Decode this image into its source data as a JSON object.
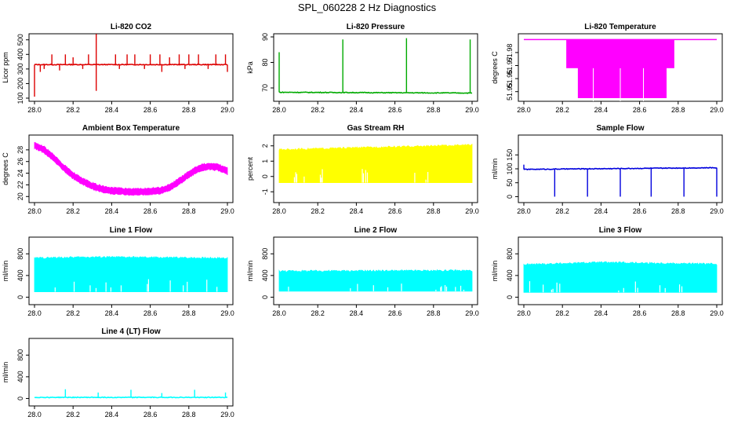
{
  "figure_title": "SPL_060228  2 Hz Diagnostics",
  "chart_data": [
    {
      "type": "line",
      "title": "Li-820 CO2",
      "ylabel": "Licor ppm",
      "xlim": [
        28.0,
        29.0
      ],
      "ylim": [
        100,
        520
      ],
      "xticks": [
        28.0,
        28.2,
        28.4,
        28.6,
        28.8,
        29.0
      ],
      "yticks": [
        100,
        200,
        300,
        400,
        500
      ],
      "color": "#dd0000",
      "baseline": 330,
      "spikes": [
        [
          28.0,
          110
        ],
        [
          28.03,
          280
        ],
        [
          28.05,
          300
        ],
        [
          28.09,
          400
        ],
        [
          28.13,
          290
        ],
        [
          28.16,
          400
        ],
        [
          28.2,
          380
        ],
        [
          28.25,
          300
        ],
        [
          28.28,
          400
        ],
        [
          28.32,
          540
        ],
        [
          28.32,
          150
        ],
        [
          28.42,
          400
        ],
        [
          28.44,
          300
        ],
        [
          28.48,
          400
        ],
        [
          28.52,
          400
        ],
        [
          28.57,
          300
        ],
        [
          28.6,
          400
        ],
        [
          28.65,
          400
        ],
        [
          28.66,
          280
        ],
        [
          28.7,
          380
        ],
        [
          28.75,
          400
        ],
        [
          28.78,
          300
        ],
        [
          28.8,
          400
        ],
        [
          28.85,
          400
        ],
        [
          28.9,
          300
        ],
        [
          28.94,
          400
        ],
        [
          28.99,
          400
        ],
        [
          29.0,
          280
        ]
      ]
    },
    {
      "type": "line",
      "title": "Li-820 Pressure",
      "ylabel": "kPa",
      "xlim": [
        28.0,
        29.0
      ],
      "ylim": [
        66,
        90
      ],
      "xticks": [
        28.0,
        28.2,
        28.4,
        28.6,
        28.8,
        29.0
      ],
      "yticks": [
        70,
        80,
        90
      ],
      "color": "#00aa00",
      "baseline_start": 68.3,
      "baseline_end": 68.0,
      "spikes": [
        [
          28.0,
          84
        ],
        [
          28.33,
          89
        ],
        [
          28.66,
          89.5
        ],
        [
          28.99,
          89
        ]
      ]
    },
    {
      "type": "area",
      "title": "Li-820 Temperature",
      "ylabel": "degrees C",
      "xlim": [
        28.0,
        29.0
      ],
      "ylim": [
        51.945,
        51.992
      ],
      "xticks": [
        28.0,
        28.2,
        28.4,
        28.6,
        28.8,
        29.0
      ],
      "yticks": [
        51.95,
        51.96,
        51.97,
        51.98
      ],
      "color": "#ff00ff",
      "upper": 51.99,
      "bands": [
        {
          "x": [
            28.22,
            28.78
          ],
          "ymin": 51.968
        },
        {
          "x": [
            28.28,
            28.74
          ],
          "ymin": 51.945
        }
      ]
    },
    {
      "type": "area",
      "title": "Ambient Box Temperature",
      "ylabel": "degrees C",
      "xlim": [
        28.0,
        29.0
      ],
      "ylim": [
        19.5,
        30.0
      ],
      "xticks": [
        28.0,
        28.2,
        28.4,
        28.6,
        28.8,
        29.0
      ],
      "yticks": [
        20,
        22,
        24,
        26,
        28
      ],
      "color": "#ff00ff",
      "curve": [
        [
          28.0,
          28.8
        ],
        [
          28.05,
          28.0
        ],
        [
          28.1,
          26.6
        ],
        [
          28.15,
          25.0
        ],
        [
          28.2,
          23.6
        ],
        [
          28.25,
          22.6
        ],
        [
          28.3,
          21.8
        ],
        [
          28.35,
          21.3
        ],
        [
          28.4,
          21.0
        ],
        [
          28.45,
          20.9
        ],
        [
          28.5,
          20.8
        ],
        [
          28.55,
          20.8
        ],
        [
          28.6,
          20.9
        ],
        [
          28.65,
          21.0
        ],
        [
          28.7,
          21.5
        ],
        [
          28.75,
          22.6
        ],
        [
          28.8,
          23.8
        ],
        [
          28.85,
          24.8
        ],
        [
          28.9,
          25.2
        ],
        [
          28.95,
          25.0
        ],
        [
          29.0,
          24.4
        ]
      ],
      "band": 1.3
    },
    {
      "type": "area",
      "title": "Gas Stream RH",
      "ylabel": "percent",
      "xlim": [
        28.0,
        29.0
      ],
      "ylim": [
        -1.5,
        2.5
      ],
      "xticks": [
        28.0,
        28.2,
        28.4,
        28.6,
        28.8,
        29.0
      ],
      "yticks": [
        -1,
        0,
        1,
        2
      ],
      "color": "#ffff00",
      "top": [
        [
          28.0,
          1.75
        ],
        [
          29.0,
          2.05
        ]
      ],
      "bottom": -0.4
    },
    {
      "type": "line",
      "title": "Sample Flow",
      "ylabel": "ml/min",
      "xlim": [
        28.0,
        29.0
      ],
      "ylim": [
        -10,
        210
      ],
      "xticks": [
        28.0,
        28.2,
        28.4,
        28.6,
        28.8,
        29.0
      ],
      "yticks": [
        0,
        50,
        100,
        150
      ],
      "color": "#0000dd",
      "baseline_start": 98,
      "baseline_end": 104,
      "spikes": [
        [
          28.0,
          115
        ],
        [
          28.16,
          0
        ],
        [
          28.33,
          0
        ],
        [
          28.5,
          0
        ],
        [
          28.66,
          0
        ],
        [
          28.83,
          0
        ],
        [
          29.0,
          0
        ]
      ]
    },
    {
      "type": "area",
      "title": "Line 1 Flow",
      "ylabel": "ml/min",
      "xlim": [
        28.0,
        29.0
      ],
      "ylim": [
        -80,
        1050
      ],
      "xticks": [
        28.0,
        28.2,
        28.4,
        28.6,
        28.8,
        29.0
      ],
      "yticks": [
        0,
        400,
        800
      ],
      "color": "#00ffff",
      "top": [
        [
          28.0,
          720
        ],
        [
          28.3,
          740
        ],
        [
          29.0,
          720
        ]
      ],
      "bottom": 100
    },
    {
      "type": "area",
      "title": "Line 2 Flow",
      "ylabel": "ml/min",
      "xlim": [
        28.0,
        29.0
      ],
      "ylim": [
        -80,
        1050
      ],
      "xticks": [
        28.0,
        28.2,
        28.4,
        28.6,
        28.8,
        29.0
      ],
      "yticks": [
        0,
        400,
        800
      ],
      "color": "#00ffff",
      "top": [
        [
          28.0,
          480
        ],
        [
          29.0,
          490
        ]
      ],
      "bottom": 110
    },
    {
      "type": "area",
      "title": "Line 3 Flow",
      "ylabel": "ml/min",
      "xlim": [
        28.0,
        29.0
      ],
      "ylim": [
        -80,
        1050
      ],
      "xticks": [
        28.0,
        28.2,
        28.4,
        28.6,
        28.8,
        29.0
      ],
      "yticks": [
        0,
        400,
        800
      ],
      "color": "#00ffff",
      "top": [
        [
          28.0,
          600
        ],
        [
          28.4,
          640
        ],
        [
          29.0,
          610
        ]
      ],
      "bottom": 90
    },
    {
      "type": "line",
      "title": "Line 4 (LT) Flow",
      "ylabel": "ml/min",
      "xlim": [
        28.0,
        29.0
      ],
      "ylim": [
        -80,
        1050
      ],
      "xticks": [
        28.0,
        28.2,
        28.4,
        28.6,
        28.8,
        29.0
      ],
      "yticks": [
        0,
        400,
        800
      ],
      "color": "#00ffff",
      "baseline_start": 20,
      "baseline_end": 20,
      "spikes": [
        [
          28.16,
          170
        ],
        [
          28.33,
          110
        ],
        [
          28.5,
          160
        ],
        [
          28.66,
          100
        ],
        [
          28.83,
          160
        ],
        [
          28.99,
          110
        ]
      ]
    }
  ]
}
